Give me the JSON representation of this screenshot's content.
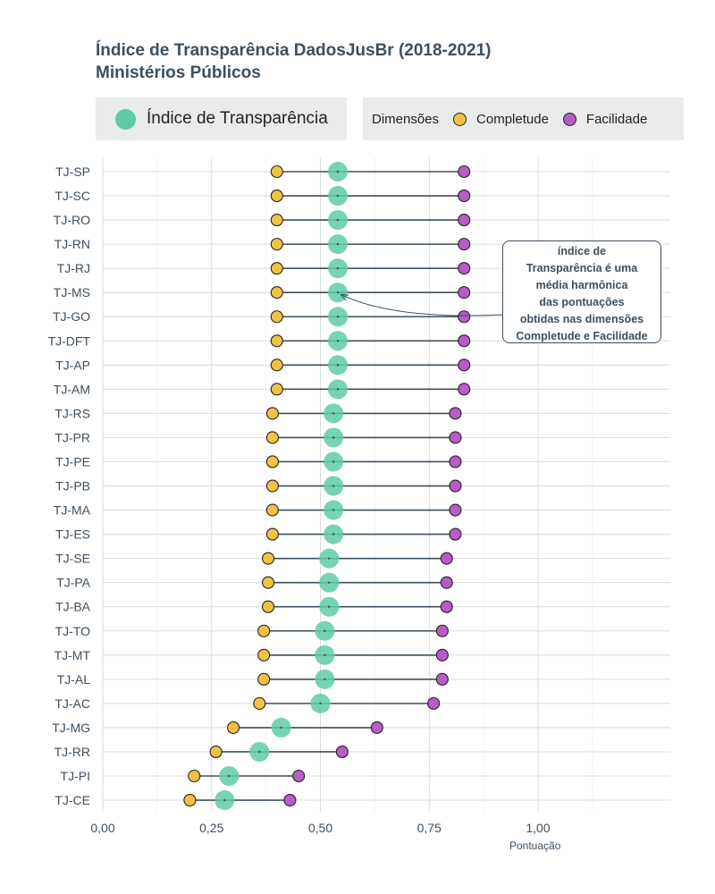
{
  "title": {
    "line1": "Índice de Transparência DadosJusBr (2018-2021)",
    "line2": "Ministérios Públicos"
  },
  "legend": {
    "index_label": "Índice de Transparência",
    "dims_title": "Dimensões",
    "completude_label": "Completude",
    "facilidade_label": "Facilidade"
  },
  "annotation": {
    "lines": [
      "índice de",
      "Transparência é uma",
      "média harmônica",
      "das pontuações",
      "obtidas nas dimensões",
      "Completude e Facilidade"
    ]
  },
  "colors": {
    "index": "#5ecba7",
    "completude": "#f2c343",
    "facilidade": "#b85cc6",
    "line": "#3d4f5f",
    "grid": "#dcdcdc"
  },
  "chart_data": {
    "type": "dot-range",
    "xlabel": "Pontuação",
    "xlim": [
      0,
      1.25
    ],
    "xticks": [
      0,
      0.25,
      0.5,
      0.75,
      1.0
    ],
    "xtick_labels": [
      "0,00",
      "0,25",
      "0,50",
      "0,75",
      "1,00"
    ],
    "categories": [
      "TJ-SP",
      "TJ-SC",
      "TJ-RO",
      "TJ-RN",
      "TJ-RJ",
      "TJ-MS",
      "TJ-GO",
      "TJ-DFT",
      "TJ-AP",
      "TJ-AM",
      "TJ-RS",
      "TJ-PR",
      "TJ-PE",
      "TJ-PB",
      "TJ-MA",
      "TJ-ES",
      "TJ-SE",
      "TJ-PA",
      "TJ-BA",
      "TJ-TO",
      "TJ-MT",
      "TJ-AL",
      "TJ-AC",
      "TJ-MG",
      "TJ-RR",
      "TJ-PI",
      "TJ-CE"
    ],
    "series": [
      {
        "name": "Completude",
        "values": [
          0.4,
          0.4,
          0.4,
          0.4,
          0.4,
          0.4,
          0.4,
          0.4,
          0.4,
          0.4,
          0.39,
          0.39,
          0.39,
          0.39,
          0.39,
          0.39,
          0.38,
          0.38,
          0.38,
          0.37,
          0.37,
          0.37,
          0.36,
          0.3,
          0.26,
          0.21,
          0.2
        ]
      },
      {
        "name": "Facilidade",
        "values": [
          0.83,
          0.83,
          0.83,
          0.83,
          0.83,
          0.83,
          0.83,
          0.83,
          0.83,
          0.83,
          0.81,
          0.81,
          0.81,
          0.81,
          0.81,
          0.81,
          0.79,
          0.79,
          0.79,
          0.78,
          0.78,
          0.78,
          0.76,
          0.63,
          0.55,
          0.45,
          0.43
        ]
      },
      {
        "name": "Índice de Transparência",
        "values": [
          0.54,
          0.54,
          0.54,
          0.54,
          0.54,
          0.54,
          0.54,
          0.54,
          0.54,
          0.54,
          0.53,
          0.53,
          0.53,
          0.53,
          0.53,
          0.53,
          0.52,
          0.52,
          0.52,
          0.51,
          0.51,
          0.51,
          0.5,
          0.41,
          0.36,
          0.29,
          0.28
        ]
      }
    ]
  }
}
